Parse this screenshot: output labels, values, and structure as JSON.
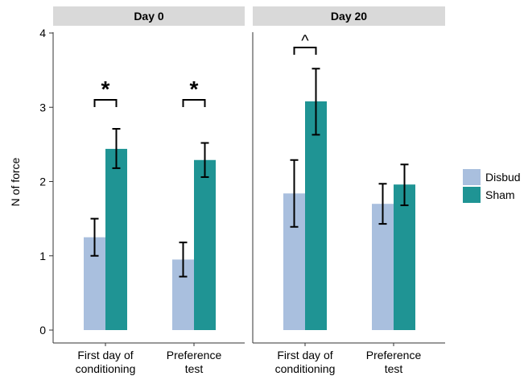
{
  "chart_data": {
    "type": "bar",
    "ylabel": "N of force",
    "ylim": [
      0,
      4
    ],
    "y_ticks": [
      "0",
      "1",
      "2",
      "3",
      "4"
    ],
    "categories": [
      "First day of\nconditioning",
      "Preference\ntest"
    ],
    "legend": {
      "position": "right",
      "entries": [
        {
          "name": "Disbud",
          "color": "#a9bfde"
        },
        {
          "name": "Sham",
          "color": "#1f9494"
        }
      ]
    },
    "panels": [
      {
        "title": "Day 0",
        "series": [
          {
            "name": "Disbud",
            "values": [
              1.25,
              0.95
            ],
            "error": [
              [
                1.0,
                1.5
              ],
              [
                0.72,
                1.18
              ]
            ]
          },
          {
            "name": "Sham",
            "values": [
              2.44,
              2.29
            ],
            "error": [
              [
                2.18,
                2.71
              ],
              [
                2.06,
                2.52
              ]
            ]
          }
        ],
        "annotations": [
          {
            "category_index": 0,
            "text": "*"
          },
          {
            "category_index": 1,
            "text": "*"
          }
        ]
      },
      {
        "title": "Day 20",
        "series": [
          {
            "name": "Disbud",
            "values": [
              1.84,
              1.7
            ],
            "error": [
              [
                1.39,
                2.29
              ],
              [
                1.43,
                1.97
              ]
            ]
          },
          {
            "name": "Sham",
            "values": [
              3.08,
              1.96
            ],
            "error": [
              [
                2.63,
                3.52
              ],
              [
                1.68,
                2.23
              ]
            ]
          }
        ],
        "annotations": [
          {
            "category_index": 0,
            "text": "^"
          }
        ]
      }
    ],
    "colors": {
      "disbud": "#a9bfde",
      "sham": "#1f9494",
      "strip": "#d9d9d9",
      "axis": "#333333",
      "text": "#000000"
    }
  }
}
